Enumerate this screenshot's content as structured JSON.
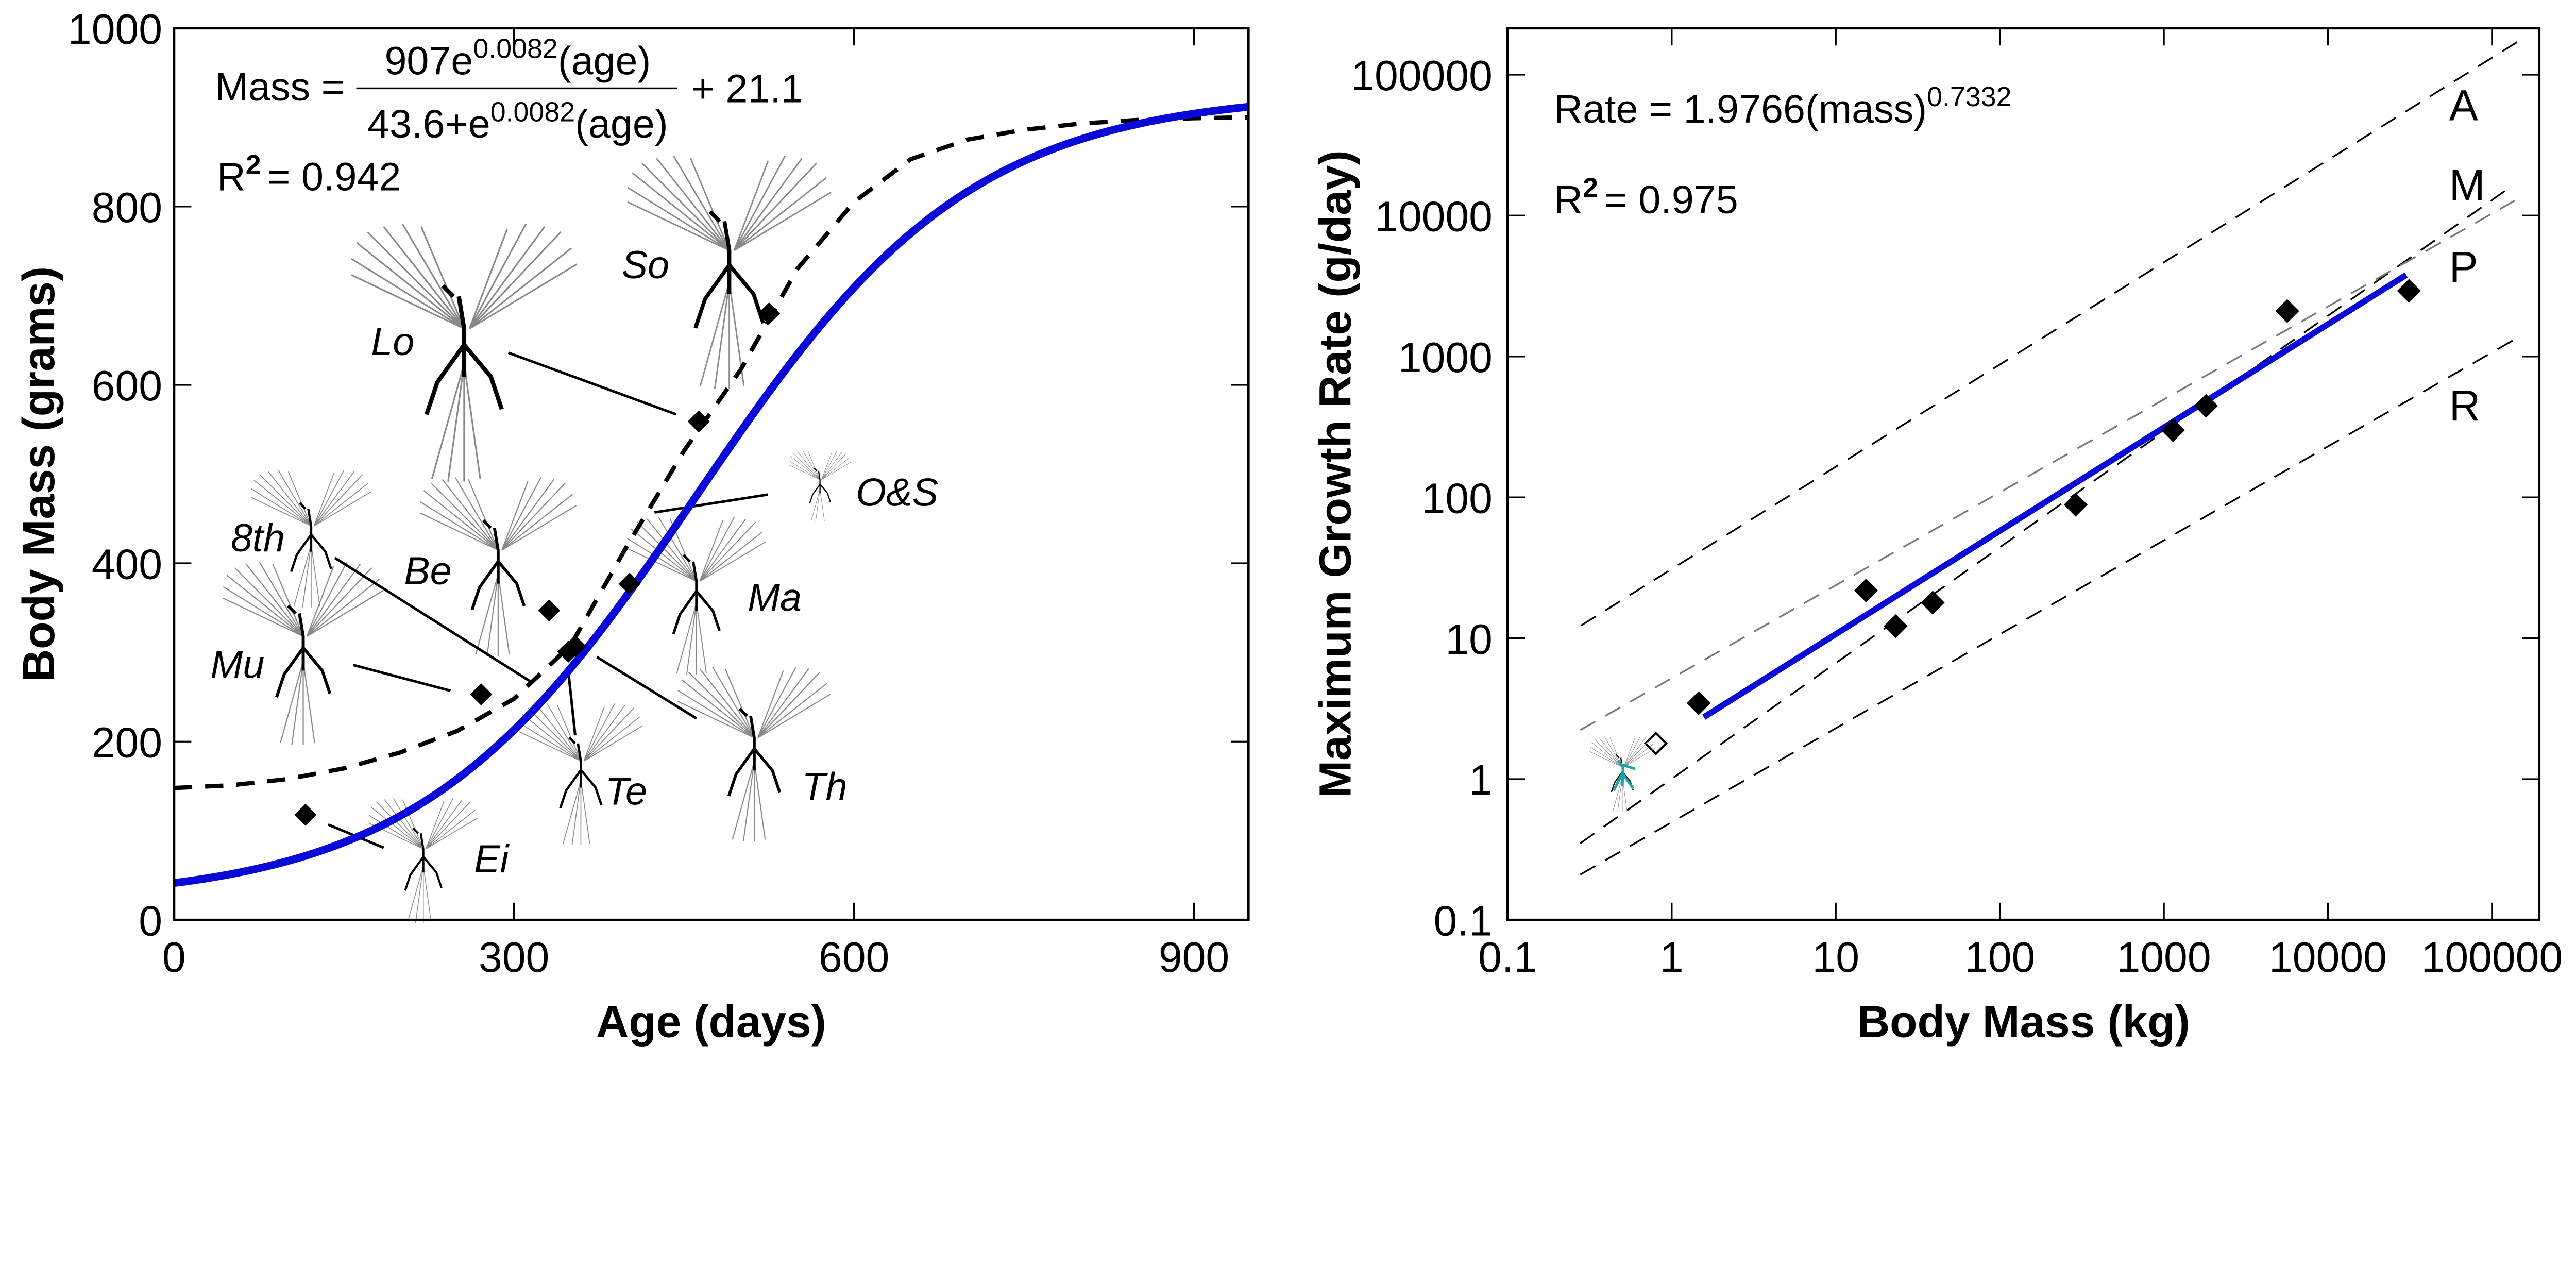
{
  "chart_data": [
    {
      "type": "line",
      "xlabel": "Age (days)",
      "ylabel": "Body Mass (grams)",
      "xlim": [
        0,
        948
      ],
      "ylim": [
        0,
        1000
      ],
      "xticks": [
        "0",
        "300",
        "600",
        "900"
      ],
      "xtick_values": [
        0,
        300,
        600,
        900
      ],
      "yticks": [
        "0",
        "200",
        "400",
        "600",
        "800",
        "1000"
      ],
      "ytick_values": [
        0,
        200,
        400,
        600,
        800,
        1000
      ],
      "grid": false,
      "colors": {
        "fit": "#0a0ad8",
        "comparison_curve": "#000000",
        "points": "#000000"
      },
      "equation": {
        "lhs": "Mass =",
        "numerator_base": "907e",
        "numerator_exp": "0.0082",
        "numerator_tail": "(age)",
        "denominator_base": "43.6+e",
        "denominator_exp": "0.0082",
        "denominator_tail": "(age)",
        "constant": "+ 21.1",
        "r2_label": "R",
        "r2_exp": "2",
        "r2_value": "= 0.942"
      },
      "fit_curve": {
        "form": "logistic",
        "a": 907,
        "k": 0.0082,
        "b": 43.6,
        "c": 21.1
      },
      "dashed_curve": {
        "x": [
          0,
          50,
          100,
          150,
          200,
          250,
          300,
          350,
          400,
          450,
          500,
          550,
          600,
          650,
          700,
          750,
          800,
          850,
          900,
          948
        ],
        "y": [
          148,
          151,
          158,
          170,
          188,
          212,
          248,
          308,
          420,
          526,
          617,
          730,
          805,
          853,
          875,
          886,
          893,
          897,
          899,
          900
        ]
      },
      "points": [
        {
          "x": 116,
          "y": 118
        },
        {
          "x": 271,
          "y": 253
        },
        {
          "x": 331,
          "y": 347
        },
        {
          "x": 348,
          "y": 301
        },
        {
          "x": 354,
          "y": 307
        },
        {
          "x": 402,
          "y": 377
        },
        {
          "x": 463,
          "y": 559
        },
        {
          "x": 525,
          "y": 680
        }
      ],
      "annotations": [
        "Lo",
        "So",
        "O&S",
        "8th",
        "Be",
        "Ma",
        "Mu",
        "Te",
        "Th",
        "Ei"
      ]
    },
    {
      "type": "scatter",
      "xlabel": "Body Mass (kg)",
      "ylabel": "Maximum Growth Rate (g/day)",
      "xscale": "log",
      "yscale": "log",
      "xlim": [
        0.1,
        194000
      ],
      "ylim": [
        0.1,
        214000
      ],
      "xticks": [
        "0.1",
        "1",
        "10",
        "100",
        "1000",
        "10000",
        "100000"
      ],
      "xtick_values": [
        0.1,
        1,
        10,
        100,
        1000,
        10000,
        100000
      ],
      "yticks": [
        "0.1",
        "1",
        "10",
        "100",
        "1000",
        "10000",
        "100000"
      ],
      "ytick_values": [
        0.1,
        1,
        10,
        100,
        1000,
        10000,
        100000
      ],
      "grid": false,
      "colors": {
        "fit": "#0a0ad8",
        "reference_lines": "#000000",
        "reference_line_P": "#777777",
        "specimen_icon": "#1aa3a8"
      },
      "equation": {
        "base": "Rate = 1.9766(mass)",
        "exp": "0.7332",
        "r2_label": "R",
        "r2_exp": "2",
        "r2_value": "= 0.975"
      },
      "fit_line": {
        "coef": 1.9766,
        "exponent": 0.7332,
        "x_range": [
          1.57,
          30000
        ]
      },
      "reference_lines": [
        {
          "label": "A",
          "x": [
            0.28,
            150000
          ],
          "y": [
            12.3,
            177000
          ]
        },
        {
          "label": "M",
          "x": [
            0.277,
            136000
          ],
          "y": [
            0.35,
            16600
          ]
        },
        {
          "label": "P",
          "x": [
            0.277,
            150000
          ],
          "y": [
            2.23,
            13500
          ]
        },
        {
          "label": "R",
          "x": [
            0.277,
            150000
          ],
          "y": [
            0.21,
            1400
          ]
        }
      ],
      "points": [
        {
          "x": 1.46,
          "y": 3.46
        },
        {
          "x": 15.3,
          "y": 21.8
        },
        {
          "x": 23.2,
          "y": 12.2
        },
        {
          "x": 39,
          "y": 17.9
        },
        {
          "x": 290,
          "y": 88.6
        },
        {
          "x": 1137,
          "y": 300
        },
        {
          "x": 1807,
          "y": 446
        },
        {
          "x": 5650,
          "y": 2100
        },
        {
          "x": 31200,
          "y": 2920
        }
      ],
      "hollow_points": [
        {
          "x": 0.8,
          "y": 1.79
        }
      ]
    }
  ]
}
